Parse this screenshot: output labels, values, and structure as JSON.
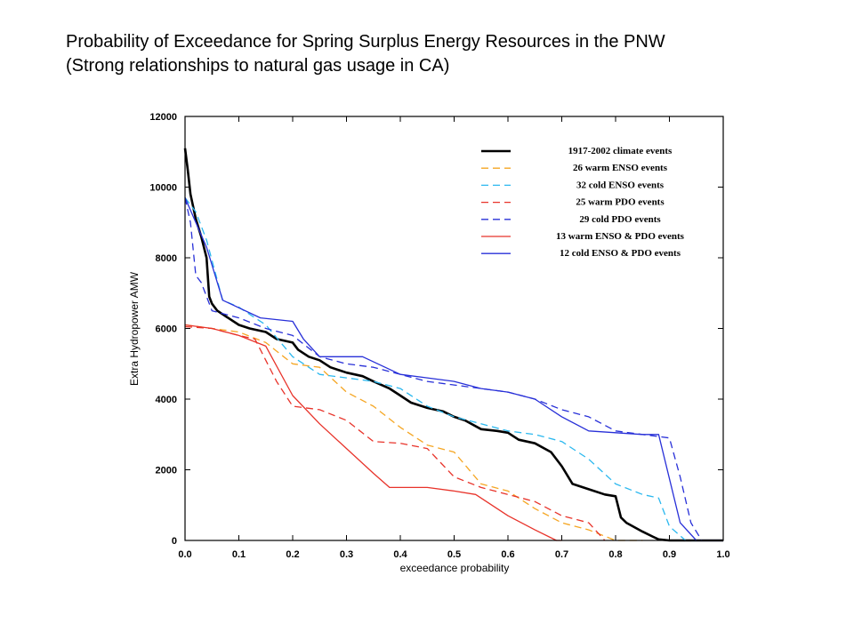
{
  "slide": {
    "title_line1": "Probability of Exceedance for Spring Surplus Energy Resources in the PNW",
    "title_line2": "(Strong relationships to natural gas usage in CA)"
  },
  "chart_data": {
    "type": "line",
    "xlabel": "exceedance probability",
    "ylabel": "Extra Hydropower AMW",
    "xlim": [
      0.0,
      1.0
    ],
    "ylim": [
      0,
      12000
    ],
    "x_ticks": [
      "0.0",
      "0.1",
      "0.2",
      "0.3",
      "0.4",
      "0.5",
      "0.6",
      "0.7",
      "0.8",
      "0.9",
      "1.0"
    ],
    "y_ticks": [
      "0",
      "2000",
      "4000",
      "6000",
      "8000",
      "10000",
      "12000"
    ],
    "grid": false,
    "legend_position": "top-right",
    "series": [
      {
        "name": "1917-2002 climate events",
        "color": "#000000",
        "style": "solid",
        "width": 2.6,
        "x": [
          0.0,
          0.005,
          0.01,
          0.02,
          0.03,
          0.04,
          0.045,
          0.05,
          0.06,
          0.08,
          0.1,
          0.12,
          0.15,
          0.17,
          0.2,
          0.21,
          0.23,
          0.25,
          0.27,
          0.3,
          0.33,
          0.35,
          0.38,
          0.4,
          0.42,
          0.45,
          0.48,
          0.5,
          0.52,
          0.55,
          0.58,
          0.6,
          0.62,
          0.65,
          0.68,
          0.7,
          0.72,
          0.75,
          0.78,
          0.8,
          0.81,
          0.82,
          0.85,
          0.87,
          0.88,
          0.9,
          0.93,
          0.95,
          1.0
        ],
        "y": [
          11100,
          10500,
          9800,
          9100,
          8600,
          8000,
          6900,
          6700,
          6500,
          6300,
          6100,
          6000,
          5900,
          5700,
          5600,
          5400,
          5200,
          5100,
          4900,
          4750,
          4650,
          4500,
          4300,
          4100,
          3900,
          3750,
          3650,
          3500,
          3400,
          3150,
          3100,
          3050,
          2850,
          2750,
          2500,
          2100,
          1600,
          1450,
          1300,
          1250,
          650,
          500,
          250,
          100,
          30,
          0,
          0,
          0,
          0
        ]
      },
      {
        "name": "26 warm ENSO events",
        "color": "#f5a623",
        "style": "dashed",
        "width": 1.3,
        "x": [
          0.0,
          0.05,
          0.1,
          0.15,
          0.2,
          0.25,
          0.3,
          0.35,
          0.4,
          0.45,
          0.5,
          0.55,
          0.6,
          0.65,
          0.7,
          0.75,
          0.8,
          0.85
        ],
        "y": [
          6100,
          6000,
          5900,
          5600,
          5000,
          4900,
          4200,
          3800,
          3200,
          2700,
          2500,
          1600,
          1400,
          900,
          500,
          300,
          0,
          0
        ]
      },
      {
        "name": "32 cold ENSO events",
        "color": "#2bb8ef",
        "style": "dashed",
        "width": 1.3,
        "x": [
          0.0,
          0.02,
          0.04,
          0.07,
          0.1,
          0.15,
          0.2,
          0.25,
          0.3,
          0.35,
          0.4,
          0.45,
          0.5,
          0.55,
          0.6,
          0.65,
          0.7,
          0.75,
          0.8,
          0.85,
          0.88,
          0.9,
          0.93,
          0.95
        ],
        "y": [
          9700,
          9300,
          8500,
          6800,
          6600,
          6100,
          5200,
          4700,
          4600,
          4500,
          4300,
          3800,
          3500,
          3300,
          3100,
          3000,
          2800,
          2300,
          1600,
          1300,
          1200,
          400,
          0,
          0
        ]
      },
      {
        "name": "25 warm PDO events",
        "color": "#e8332a",
        "style": "dashed",
        "width": 1.3,
        "x": [
          0.0,
          0.05,
          0.1,
          0.13,
          0.17,
          0.2,
          0.25,
          0.3,
          0.35,
          0.4,
          0.45,
          0.5,
          0.55,
          0.6,
          0.65,
          0.7,
          0.75,
          0.78
        ],
        "y": [
          6050,
          6000,
          5800,
          5700,
          4500,
          3800,
          3700,
          3400,
          2800,
          2750,
          2600,
          1800,
          1500,
          1300,
          1100,
          700,
          500,
          0
        ]
      },
      {
        "name": "29 cold PDO events",
        "color": "#2830d8",
        "style": "dashed",
        "width": 1.3,
        "x": [
          0.0,
          0.01,
          0.02,
          0.03,
          0.05,
          0.1,
          0.15,
          0.2,
          0.25,
          0.3,
          0.35,
          0.4,
          0.45,
          0.5,
          0.55,
          0.6,
          0.65,
          0.7,
          0.75,
          0.8,
          0.85,
          0.9,
          0.92,
          0.94,
          0.96
        ],
        "y": [
          9700,
          9000,
          7500,
          7300,
          6500,
          6300,
          6000,
          5800,
          5200,
          5000,
          4900,
          4700,
          4500,
          4400,
          4300,
          4200,
          4000,
          3700,
          3500,
          3100,
          3000,
          2900,
          1800,
          500,
          0
        ]
      },
      {
        "name": "13 warm ENSO & PDO events",
        "color": "#e8332a",
        "style": "solid",
        "width": 1.3,
        "x": [
          0.0,
          0.05,
          0.1,
          0.15,
          0.2,
          0.25,
          0.3,
          0.35,
          0.38,
          0.45,
          0.5,
          0.54,
          0.6,
          0.65,
          0.69,
          0.7
        ],
        "y": [
          6100,
          6000,
          5800,
          5500,
          4100,
          3300,
          2600,
          1900,
          1500,
          1500,
          1400,
          1300,
          700,
          300,
          0,
          0
        ]
      },
      {
        "name": "12 cold ENSO & PDO events",
        "color": "#2830d8",
        "style": "solid",
        "width": 1.3,
        "x": [
          0.0,
          0.02,
          0.04,
          0.07,
          0.14,
          0.2,
          0.22,
          0.25,
          0.3,
          0.33,
          0.4,
          0.45,
          0.5,
          0.55,
          0.6,
          0.65,
          0.7,
          0.75,
          0.85,
          0.88,
          0.92,
          0.95,
          1.0
        ],
        "y": [
          9700,
          9000,
          8300,
          6800,
          6300,
          6200,
          5700,
          5200,
          5200,
          5200,
          4700,
          4600,
          4500,
          4300,
          4200,
          4000,
          3500,
          3100,
          3000,
          3000,
          500,
          0,
          0
        ]
      }
    ]
  }
}
